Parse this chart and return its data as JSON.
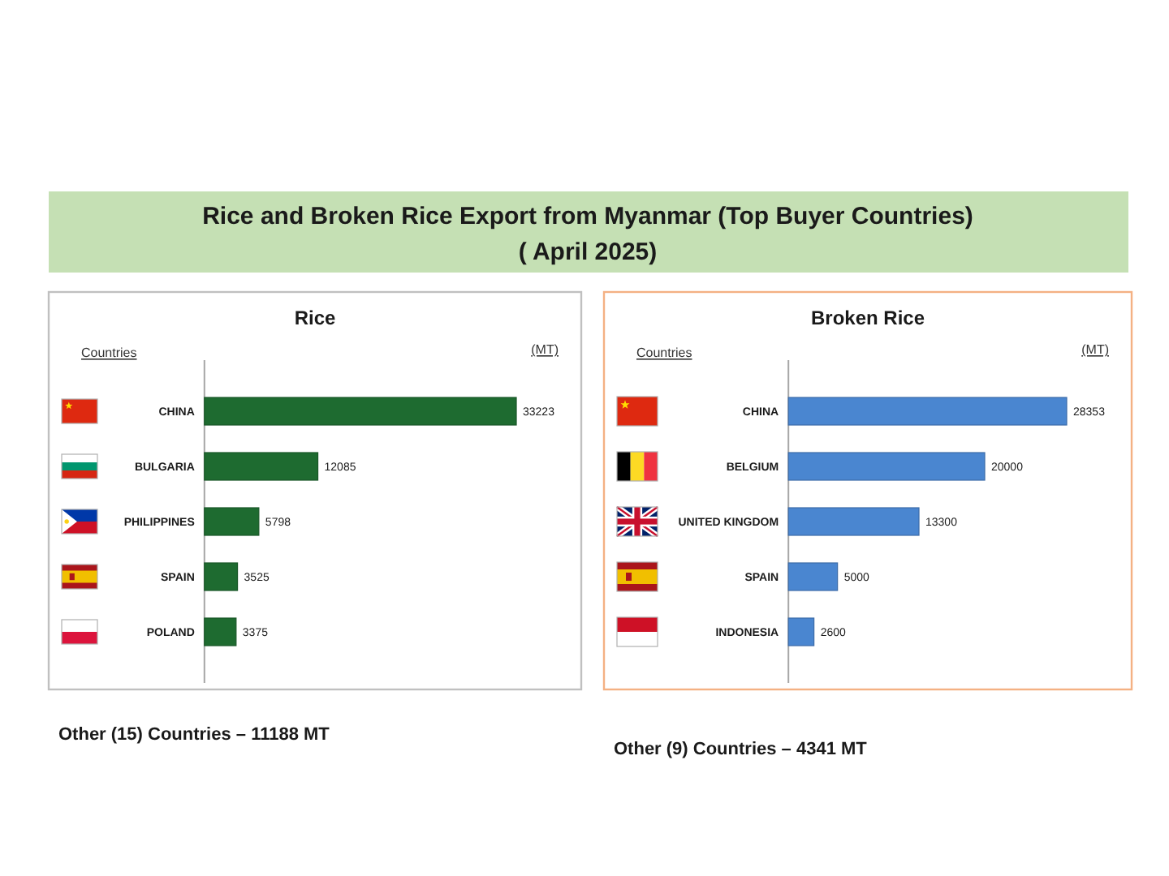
{
  "chart_data": [
    {
      "type": "other",
      "title": "Rice and Broken Rice Export from Myanmar (Top Buyer Countries)",
      "subtitle": "( April 2025)"
    },
    {
      "type": "bar",
      "orientation": "horizontal",
      "title": "Rice",
      "ylabel": "Countries",
      "xlabel": "(MT)",
      "categories": [
        "CHINA",
        "BULGARIA",
        "PHILIPPINES",
        "SPAIN",
        "POLAND"
      ],
      "values": [
        33223,
        12085,
        5798,
        3525,
        3375
      ],
      "color": "#1e6b30",
      "data_labels": true,
      "annotations": [
        "Other (15) Countries –  11188 MT"
      ]
    },
    {
      "type": "bar",
      "orientation": "horizontal",
      "title": "Broken Rice",
      "ylabel": "Countries",
      "xlabel": "(MT)",
      "categories": [
        "CHINA",
        "BELGIUM",
        "UNITED KINGDOM",
        "SPAIN",
        "INDONESIA"
      ],
      "values": [
        28353,
        20000,
        13300,
        5000,
        2600
      ],
      "color": "#4a86d0",
      "data_labels": true,
      "annotations": [
        "Other (9) Countries –  4341 MT"
      ]
    }
  ]
}
